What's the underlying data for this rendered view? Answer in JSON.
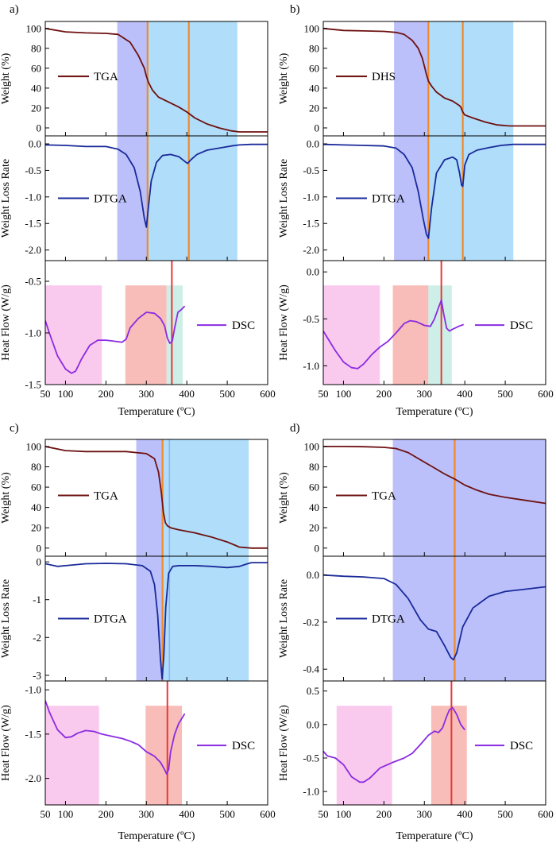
{
  "chart_data": [
    {
      "panel_label": "a)",
      "xlabel": "Temperature (ºC)",
      "xlim": [
        50,
        600
      ],
      "xticks": [
        "100",
        "200",
        "300",
        "400",
        "500",
        "600"
      ],
      "vlines": [
        {
          "x": 303,
          "color": "#f08a2a"
        },
        {
          "x": 405,
          "color": "#f08a2a"
        }
      ],
      "subplots": [
        {
          "type": "line",
          "ylabel": "Weight (%)",
          "ylim": [
            -8,
            107
          ],
          "yticks": [
            0,
            20,
            40,
            60,
            80,
            100
          ],
          "series_name": "TGA",
          "color": "#6e1010",
          "bands": [
            {
              "x0": 228,
              "x1": 303,
              "color": "#b4b9fa"
            },
            {
              "x0": 303,
              "x1": 525,
              "color": "#a7d9f8"
            }
          ],
          "x": [
            50,
            100,
            150,
            200,
            230,
            260,
            280,
            295,
            300,
            305,
            315,
            330,
            350,
            380,
            400,
            420,
            450,
            480,
            510,
            530,
            560,
            600
          ],
          "y": [
            100,
            96.5,
            95.5,
            95,
            94,
            86,
            73,
            60,
            52,
            46,
            38,
            31,
            27,
            21,
            16,
            10,
            4,
            0,
            -3,
            -4,
            -4,
            -4
          ]
        },
        {
          "type": "line",
          "ylabel": "Weight Loss Rate",
          "ylim": [
            -2.2,
            0.15
          ],
          "yticks": [
            "0.0",
            "-0.5",
            "-1.0",
            "-1.5",
            "-2.0"
          ],
          "series_name": "DTGA",
          "color": "#1a2a9a",
          "bands": [
            {
              "x0": 228,
              "x1": 303,
              "color": "#b4b9fa"
            },
            {
              "x0": 303,
              "x1": 525,
              "color": "#a7d9f8"
            }
          ],
          "x": [
            50,
            100,
            150,
            200,
            230,
            250,
            270,
            285,
            295,
            300,
            305,
            312,
            325,
            340,
            360,
            380,
            395,
            402,
            410,
            425,
            450,
            480,
            510,
            530,
            560,
            600
          ],
          "y": [
            -0.02,
            -0.03,
            -0.05,
            -0.05,
            -0.1,
            -0.2,
            -0.45,
            -0.9,
            -1.4,
            -1.57,
            -1.2,
            -0.7,
            -0.35,
            -0.22,
            -0.2,
            -0.24,
            -0.33,
            -0.37,
            -0.3,
            -0.2,
            -0.12,
            -0.08,
            -0.04,
            -0.02,
            -0.01,
            -0.01
          ]
        },
        {
          "type": "line",
          "ylabel": "Heat Flow (W/g)",
          "ylim": [
            -1.5,
            -0.3
          ],
          "yticks": [
            "-0.5",
            "-1.0",
            "-1.5"
          ],
          "series_name": "DSC",
          "color": "#8b2be2",
          "bands": [
            {
              "x0": 50,
              "x1": 190,
              "color": "#f9c4ec"
            },
            {
              "x0": 248,
              "x1": 350,
              "color": "#f7b6b0"
            },
            {
              "x0": 350,
              "x1": 390,
              "color": "#c9ede6"
            }
          ],
          "vlines": [
            {
              "x": 363,
              "color": "#e83838"
            }
          ],
          "x": [
            50,
            60,
            80,
            100,
            115,
            125,
            140,
            160,
            180,
            200,
            220,
            240,
            250,
            260,
            280,
            300,
            320,
            335,
            345,
            352,
            358,
            364,
            370,
            378,
            385,
            395
          ],
          "y": [
            -0.88,
            -1.0,
            -1.22,
            -1.35,
            -1.39,
            -1.37,
            -1.25,
            -1.12,
            -1.07,
            -1.07,
            -1.08,
            -1.09,
            -1.06,
            -0.95,
            -0.86,
            -0.8,
            -0.81,
            -0.86,
            -0.93,
            -1.05,
            -1.1,
            -1.08,
            -0.95,
            -0.8,
            -0.78,
            -0.74
          ]
        }
      ]
    },
    {
      "panel_label": "b)",
      "xlabel": "Temperature (ºC)",
      "xlim": [
        50,
        600
      ],
      "xticks": [
        "100",
        "200",
        "300",
        "400",
        "500",
        "600"
      ],
      "vlines": [
        {
          "x": 310,
          "color": "#f08a2a"
        },
        {
          "x": 395,
          "color": "#f08a2a"
        }
      ],
      "subplots": [
        {
          "type": "line",
          "ylabel": "Weight (%)",
          "ylim": [
            -8,
            107
          ],
          "yticks": [
            0,
            20,
            40,
            60,
            80,
            100
          ],
          "series_name": "DHS",
          "color": "#6e1010",
          "bands": [
            {
              "x0": 225,
              "x1": 310,
              "color": "#b4b9fa"
            },
            {
              "x0": 310,
              "x1": 520,
              "color": "#a7d9f8"
            }
          ],
          "x": [
            50,
            100,
            150,
            200,
            230,
            250,
            270,
            285,
            295,
            300,
            305,
            310,
            318,
            330,
            350,
            370,
            385,
            390,
            395,
            400,
            420,
            450,
            480,
            510,
            540,
            600
          ],
          "y": [
            100,
            98,
            97.5,
            97,
            96,
            94,
            88,
            80,
            70,
            62,
            54,
            47,
            42,
            36,
            30,
            27,
            23,
            21,
            16,
            13,
            10,
            6,
            3,
            2,
            2,
            2
          ]
        },
        {
          "type": "line",
          "ylabel": "Weight Loss Rate",
          "ylim": [
            -2.2,
            0.15
          ],
          "yticks": [
            "0.0",
            "-0.5",
            "-1.0",
            "-1.5",
            "-2.0"
          ],
          "series_name": "DTGA",
          "color": "#1a2a9a",
          "bands": [
            {
              "x0": 225,
              "x1": 310,
              "color": "#b4b9fa"
            },
            {
              "x0": 310,
              "x1": 520,
              "color": "#a7d9f8"
            }
          ],
          "x": [
            50,
            100,
            150,
            200,
            230,
            250,
            270,
            285,
            297,
            305,
            310,
            318,
            330,
            350,
            370,
            380,
            387,
            392,
            395,
            400,
            410,
            430,
            460,
            490,
            520,
            560,
            600
          ],
          "y": [
            -0.01,
            -0.02,
            -0.03,
            -0.04,
            -0.08,
            -0.2,
            -0.45,
            -0.9,
            -1.4,
            -1.7,
            -1.78,
            -1.2,
            -0.55,
            -0.3,
            -0.25,
            -0.3,
            -0.55,
            -0.78,
            -0.8,
            -0.4,
            -0.2,
            -0.12,
            -0.07,
            -0.03,
            -0.01,
            -0.01,
            -0.01
          ]
        },
        {
          "type": "line",
          "ylabel": "Heat Flow (W/g)",
          "ylim": [
            -1.2,
            0.12
          ],
          "yticks": [
            "0.0",
            "-0.5",
            "-1.0"
          ],
          "series_name": "DSC",
          "color": "#8b2be2",
          "bands": [
            {
              "x0": 50,
              "x1": 190,
              "color": "#f9c4ec"
            },
            {
              "x0": 222,
              "x1": 310,
              "color": "#f7b6b0"
            },
            {
              "x0": 310,
              "x1": 368,
              "color": "#c9ede6"
            }
          ],
          "vlines": [
            {
              "x": 342,
              "color": "#e83838"
            }
          ],
          "x": [
            50,
            60,
            80,
            100,
            120,
            135,
            150,
            170,
            190,
            210,
            230,
            250,
            265,
            280,
            300,
            315,
            325,
            335,
            342,
            348,
            355,
            362,
            370,
            385,
            397
          ],
          "y": [
            -0.63,
            -0.7,
            -0.84,
            -0.96,
            -1.02,
            -1.03,
            -0.98,
            -0.88,
            -0.8,
            -0.74,
            -0.65,
            -0.55,
            -0.52,
            -0.53,
            -0.57,
            -0.58,
            -0.5,
            -0.38,
            -0.3,
            -0.45,
            -0.6,
            -0.63,
            -0.61,
            -0.58,
            -0.56
          ]
        }
      ]
    },
    {
      "panel_label": "c)",
      "xlabel": "Temperature (ºC)",
      "xlim": [
        50,
        600
      ],
      "xticks": [
        "100",
        "200",
        "300",
        "400",
        "500",
        "600"
      ],
      "vlines": [
        {
          "x": 340,
          "color": "#f08a2a"
        }
      ],
      "subplots": [
        {
          "type": "line",
          "ylabel": "Weight (%)",
          "ylim": [
            -8,
            107
          ],
          "yticks": [
            0,
            20,
            40,
            60,
            80,
            100
          ],
          "series_name": "TGA",
          "color": "#6e1010",
          "bands": [
            {
              "x0": 275,
              "x1": 340,
              "color": "#b4b9fa"
            },
            {
              "x0": 340,
              "x1": 553,
              "color": "#a7d9f8"
            }
          ],
          "vlines": [
            {
              "x": 357,
              "color": "#8fb0f5"
            }
          ],
          "x": [
            50,
            100,
            150,
            200,
            250,
            300,
            320,
            330,
            337,
            342,
            347,
            352,
            360,
            380,
            420,
            460,
            500,
            530,
            560,
            600
          ],
          "y": [
            100,
            96,
            95,
            95,
            95,
            93,
            88,
            75,
            55,
            35,
            25,
            22,
            20,
            18,
            15,
            11,
            6,
            1,
            0,
            0
          ]
        },
        {
          "type": "line",
          "ylabel": "Weight Loss Rate",
          "ylim": [
            -3.15,
            0.15
          ],
          "yticks": [
            "0",
            "-1",
            "-2",
            "-3"
          ],
          "series_name": "DTGA",
          "color": "#1a2a9a",
          "bands": [
            {
              "x0": 275,
              "x1": 340,
              "color": "#b4b9fa"
            },
            {
              "x0": 340,
              "x1": 553,
              "color": "#a7d9f8"
            }
          ],
          "vlines": [
            {
              "x": 357,
              "color": "#8fb0f5"
            }
          ],
          "x": [
            50,
            80,
            100,
            150,
            200,
            250,
            290,
            310,
            320,
            328,
            335,
            339,
            343,
            348,
            355,
            365,
            380,
            420,
            460,
            500,
            530,
            550,
            560,
            600
          ],
          "y": [
            -0.05,
            -0.12,
            -0.1,
            -0.05,
            -0.04,
            -0.05,
            -0.1,
            -0.25,
            -0.6,
            -1.4,
            -2.6,
            -3.1,
            -2.5,
            -1.2,
            -0.3,
            -0.12,
            -0.1,
            -0.1,
            -0.12,
            -0.15,
            -0.12,
            -0.05,
            -0.02,
            -0.02
          ]
        },
        {
          "type": "line",
          "ylabel": "Heat Flow (W/g)",
          "ylim": [
            -2.3,
            -0.9
          ],
          "yticks": [
            "-1.0",
            "-1.5",
            "-2.0"
          ],
          "series_name": "DSC",
          "color": "#8b2be2",
          "bands": [
            {
              "x0": 50,
              "x1": 183,
              "color": "#f9c4ec"
            },
            {
              "x0": 298,
              "x1": 388,
              "color": "#f7b6b0"
            }
          ],
          "vlines": [
            {
              "x": 352,
              "color": "#e83838"
            }
          ],
          "x": [
            50,
            60,
            80,
            100,
            115,
            130,
            150,
            170,
            190,
            210,
            240,
            260,
            280,
            300,
            320,
            335,
            345,
            350,
            355,
            360,
            370,
            380,
            395
          ],
          "y": [
            -1.12,
            -1.25,
            -1.45,
            -1.54,
            -1.53,
            -1.49,
            -1.46,
            -1.47,
            -1.5,
            -1.52,
            -1.55,
            -1.58,
            -1.62,
            -1.7,
            -1.75,
            -1.82,
            -1.9,
            -1.95,
            -1.9,
            -1.7,
            -1.5,
            -1.38,
            -1.27
          ]
        }
      ]
    },
    {
      "panel_label": "d)",
      "xlabel": "Temperature (ºC)",
      "xlim": [
        50,
        600
      ],
      "xticks": [
        "100",
        "200",
        "300",
        "400",
        "500",
        "600"
      ],
      "vlines": [
        {
          "x": 375,
          "color": "#f08a2a"
        }
      ],
      "subplots": [
        {
          "type": "line",
          "ylabel": "Weight (%)",
          "ylim": [
            -8,
            107
          ],
          "yticks": [
            0,
            20,
            40,
            60,
            80,
            100
          ],
          "series_name": "TGA",
          "color": "#6e1010",
          "bands": [
            {
              "x0": 222,
              "x1": 600,
              "color": "#b4b9fa"
            }
          ],
          "x": [
            50,
            100,
            150,
            200,
            230,
            260,
            290,
            320,
            350,
            375,
            400,
            430,
            460,
            500,
            550,
            600
          ],
          "y": [
            100,
            100,
            99.8,
            99.2,
            98,
            94,
            87,
            80,
            73,
            68,
            62,
            57,
            53,
            50,
            47,
            44
          ]
        },
        {
          "type": "line",
          "ylabel": "Weight Loss Rate",
          "ylim": [
            -0.45,
            0.08
          ],
          "yticks": [
            "0.0",
            "-0.2",
            "-0.4"
          ],
          "series_name": "DTGA",
          "color": "#1a2a9a",
          "bands": [
            {
              "x0": 222,
              "x1": 600,
              "color": "#b4b9fa"
            }
          ],
          "x": [
            50,
            100,
            150,
            200,
            230,
            260,
            290,
            310,
            330,
            350,
            365,
            372,
            380,
            395,
            420,
            460,
            500,
            550,
            600
          ],
          "y": [
            0,
            -0.005,
            -0.008,
            -0.015,
            -0.04,
            -0.1,
            -0.19,
            -0.23,
            -0.24,
            -0.3,
            -0.35,
            -0.36,
            -0.33,
            -0.22,
            -0.14,
            -0.09,
            -0.07,
            -0.06,
            -0.05
          ]
        },
        {
          "type": "line",
          "ylabel": "Heat Flow (W/g)",
          "ylim": [
            -1.2,
            0.65
          ],
          "yticks": [
            "0.5",
            "0.0",
            "-0.5",
            "-1.0"
          ],
          "series_name": "DSC",
          "color": "#8b2be2",
          "bands": [
            {
              "x0": 83,
              "x1": 220,
              "color": "#f9c4ec"
            },
            {
              "x0": 317,
              "x1": 405,
              "color": "#f7b6b0"
            }
          ],
          "vlines": [
            {
              "x": 367,
              "color": "#e83838"
            }
          ],
          "x": [
            50,
            60,
            80,
            100,
            120,
            140,
            150,
            165,
            190,
            220,
            250,
            270,
            290,
            310,
            325,
            335,
            345,
            355,
            362,
            370,
            380,
            390,
            400
          ],
          "y": [
            -0.4,
            -0.47,
            -0.5,
            -0.6,
            -0.78,
            -0.86,
            -0.86,
            -0.8,
            -0.65,
            -0.57,
            -0.5,
            -0.43,
            -0.3,
            -0.16,
            -0.1,
            -0.12,
            -0.05,
            0.12,
            0.22,
            0.25,
            0.15,
            0.0,
            -0.08
          ]
        }
      ]
    }
  ]
}
